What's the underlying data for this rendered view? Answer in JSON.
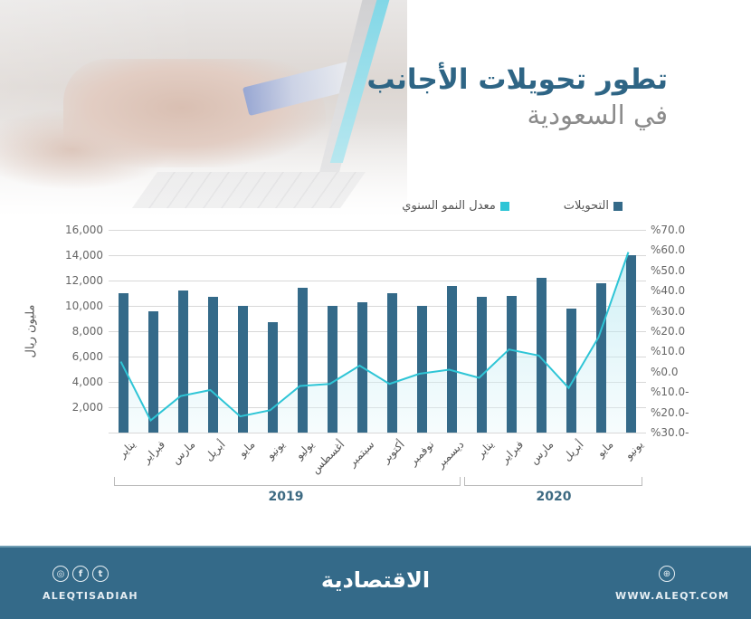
{
  "header": {
    "title_line1": "تطور تحويلات الأجانب",
    "title_line2": "في السعودية"
  },
  "legend": [
    {
      "label": "التحويلات",
      "color": "#346a89"
    },
    {
      "label": "معدل النمو السنوي",
      "color": "#2ec5d6"
    }
  ],
  "axes": {
    "y_left_label": "مليون ريال",
    "y_left_ticks": [
      "16,000",
      "14,000",
      "12,000",
      "10,000",
      "8,000",
      "6,000",
      "4,000",
      "2,000"
    ],
    "y_right_ticks": [
      "%70.0",
      "%60.0",
      "%50.0",
      "%40.0",
      "%30.0",
      "%20.0",
      "%10.0",
      "%0.0",
      "%10.0-",
      "%20.0-",
      "%30.0-"
    ]
  },
  "groups": [
    {
      "year": "2019"
    },
    {
      "year": "2020"
    }
  ],
  "chart_data": {
    "type": "bar",
    "title": "تطور تحويلات الأجانب في السعودية",
    "xlabel": "",
    "ylabel": "مليون ريال",
    "y2label": "معدل النمو السنوي",
    "ylim": [
      0,
      16000
    ],
    "y2lim": [
      -30,
      70
    ],
    "grid": true,
    "legend_position": "top",
    "categories": [
      "يناير",
      "فبراير",
      "مارس",
      "أبريل",
      "مايو",
      "يونيو",
      "يوليو",
      "أغسطس",
      "سبتمبر",
      "أكتوبر",
      "نوفمبر",
      "ديسمبر",
      "يناير",
      "فبراير",
      "مارس",
      "أبريل",
      "مايو",
      "يونيو"
    ],
    "category_groups": [
      {
        "label": "2019",
        "from": 0,
        "to": 11
      },
      {
        "label": "2020",
        "from": 12,
        "to": 17
      }
    ],
    "series": [
      {
        "name": "التحويلات",
        "type": "bar",
        "axis": "left",
        "unit": "مليون ريال",
        "values": [
          11000,
          9600,
          11200,
          10700,
          10000,
          8700,
          11400,
          10000,
          10300,
          11000,
          10000,
          11600,
          10700,
          10800,
          12200,
          9800,
          11800,
          14000
        ]
      },
      {
        "name": "معدل النمو السنوي",
        "type": "area-line",
        "axis": "right",
        "unit": "%",
        "values": [
          5,
          -24,
          -12,
          -9,
          -22,
          -19,
          -7,
          -6,
          3,
          -6,
          -1,
          1,
          -3,
          11,
          8,
          -8,
          17,
          59
        ]
      }
    ]
  },
  "footer": {
    "social_handle": "ALEQTISADIAH",
    "social_icons": [
      "instagram-icon",
      "facebook-icon",
      "twitter-icon"
    ],
    "brand": "الاقتصادية",
    "website": "WWW.ALEQT.COM"
  }
}
